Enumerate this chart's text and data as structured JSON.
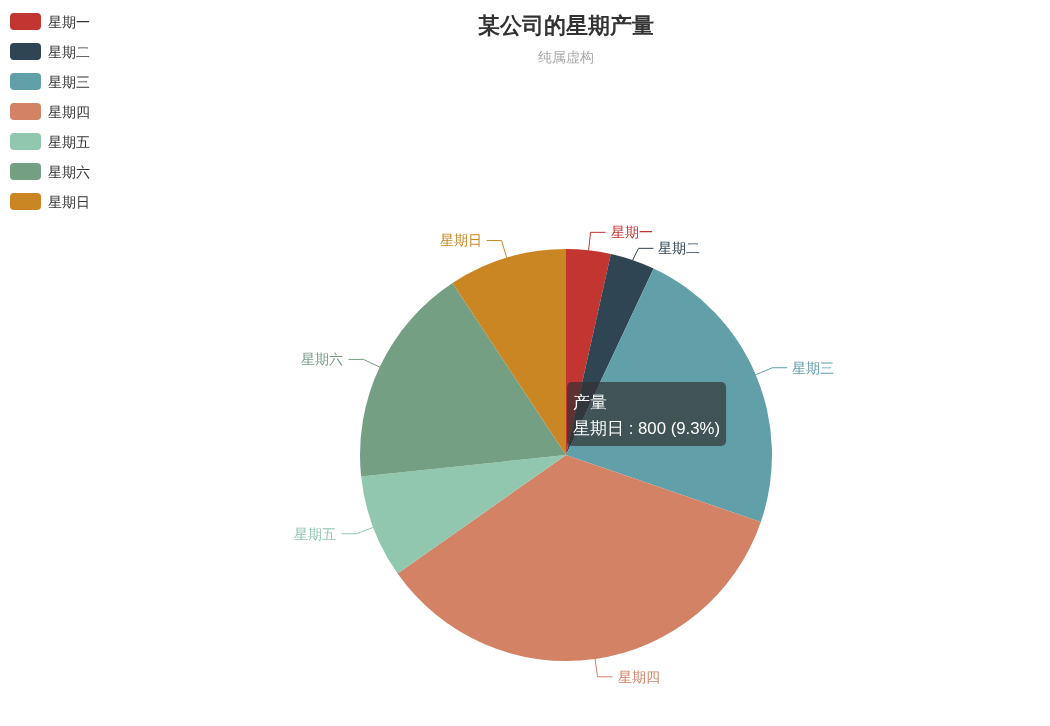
{
  "chart_data": {
    "type": "pie",
    "title": "某公司的星期产量",
    "subtitle": "纯属虚构",
    "categories": [
      "星期一",
      "星期二",
      "星期三",
      "星期四",
      "星期五",
      "星期六",
      "星期日"
    ],
    "values": [
      3.5,
      3.5,
      23.3,
      35.0,
      8.1,
      17.4,
      9.3
    ],
    "colors": [
      "#c23531",
      "#2f4554",
      "#61a0a8",
      "#d48265",
      "#91c7ae",
      "#749f83",
      "#ca8622"
    ],
    "legend": "top left",
    "annotations": [
      "产量",
      "星期日 : 800 (9.3%)"
    ]
  }
}
